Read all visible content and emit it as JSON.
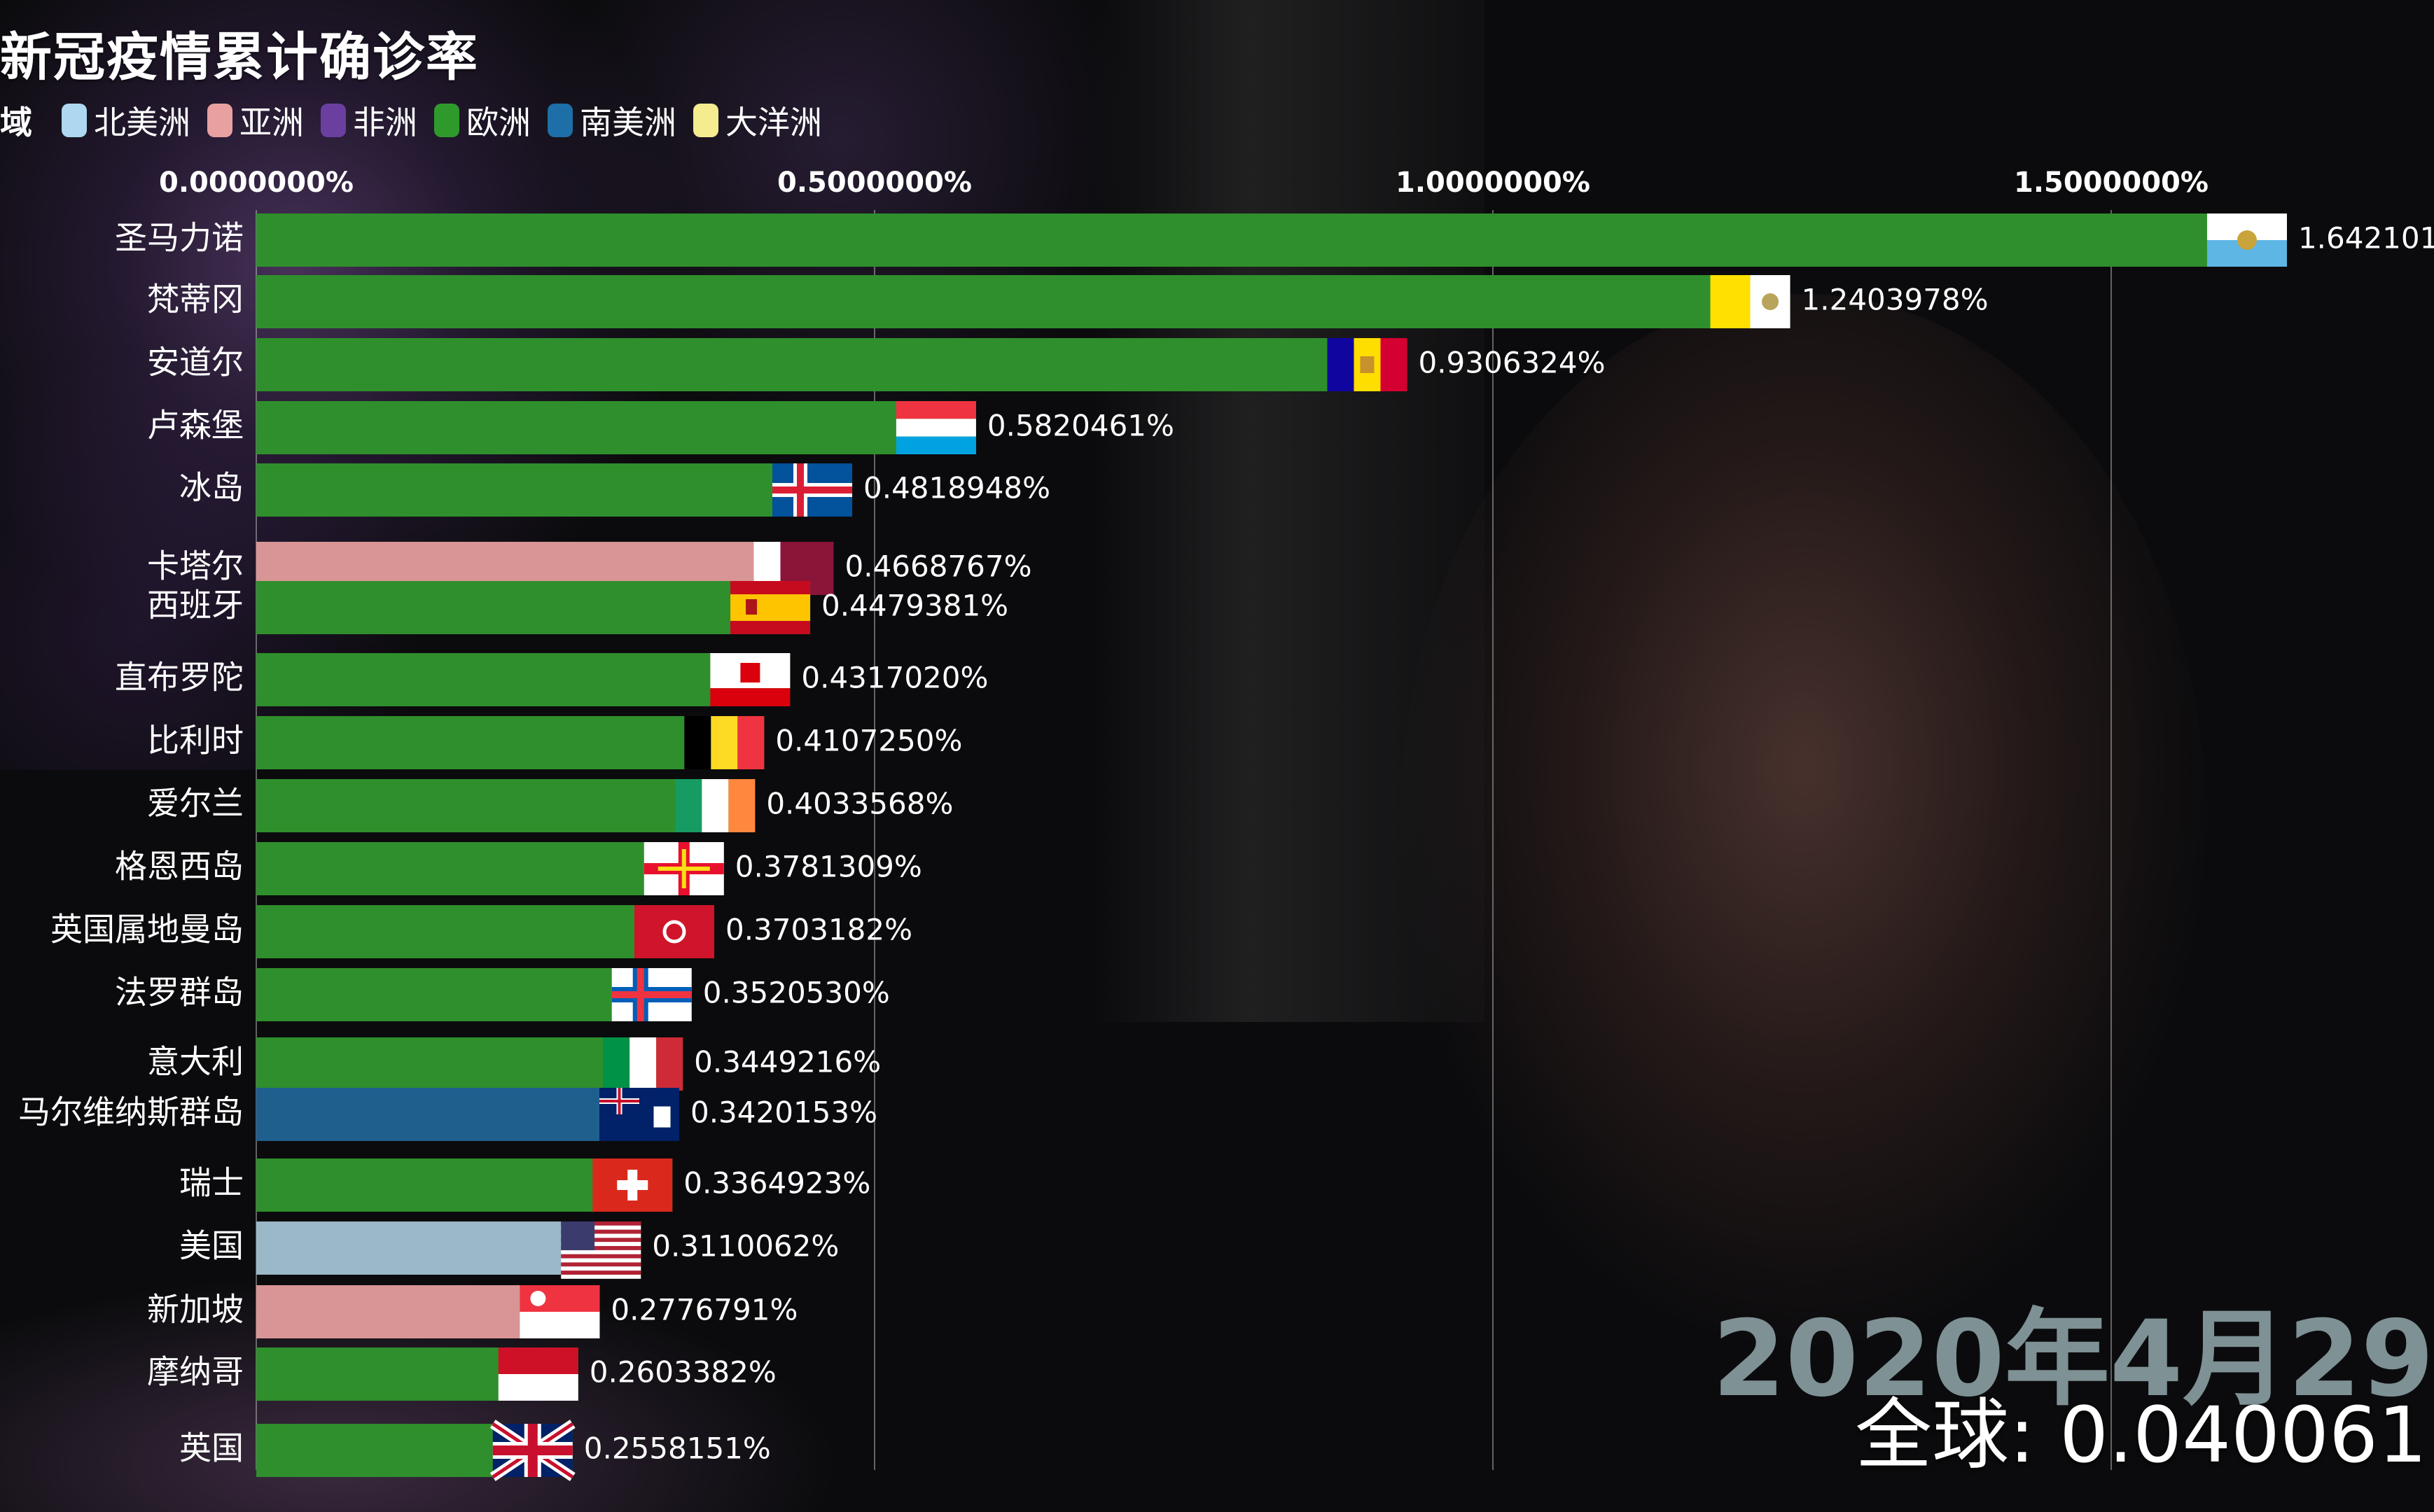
{
  "title": "新冠疫情累计确诊率",
  "legend": {
    "title": "域",
    "items": [
      {
        "label": "北美洲",
        "color": "#aed8ef"
      },
      {
        "label": "亚洲",
        "color": "#e9a0a0"
      },
      {
        "label": "非洲",
        "color": "#6a3fa0"
      },
      {
        "label": "欧洲",
        "color": "#2f9a2c"
      },
      {
        "label": "南美洲",
        "color": "#1e6fa8"
      },
      {
        "label": "大洋洲",
        "color": "#f5eb8f"
      }
    ]
  },
  "date_label": "2020年4月29",
  "total_label": "全球: 0.040061",
  "chart_data": {
    "type": "bar",
    "orientation": "horizontal",
    "x_ticks": [
      "0.0000000%",
      "0.5000000%",
      "1.0000000%",
      "1.5000000%"
    ],
    "x_tick_values": [
      0,
      0.5,
      1.0,
      1.5
    ],
    "xlim": [
      0,
      1.92
    ],
    "grid": true,
    "bars": [
      {
        "category": "圣马力诺",
        "value": 1.642101,
        "value_label": "1.642101",
        "region": "欧洲",
        "flag": "san-marino-flag"
      },
      {
        "category": "梵蒂冈",
        "value": 1.2403978,
        "value_label": "1.2403978%",
        "region": "欧洲",
        "flag": "vatican-flag"
      },
      {
        "category": "安道尔",
        "value": 0.9306324,
        "value_label": "0.9306324%",
        "region": "欧洲",
        "flag": "andorra-flag"
      },
      {
        "category": "卢森堡",
        "value": 0.5820461,
        "value_label": "0.5820461%",
        "region": "欧洲",
        "flag": "luxembourg-flag"
      },
      {
        "category": "冰岛",
        "value": 0.4818948,
        "value_label": "0.4818948%",
        "region": "欧洲",
        "flag": "iceland-flag"
      },
      {
        "category": "卡塔尔",
        "value": 0.4668767,
        "value_label": "0.4668767%",
        "region": "亚洲",
        "flag": "qatar-flag"
      },
      {
        "category": "西班牙",
        "value": 0.4479381,
        "value_label": "0.4479381%",
        "region": "欧洲",
        "flag": "spain-flag"
      },
      {
        "category": "直布罗陀",
        "value": 0.431702,
        "value_label": "0.4317020%",
        "region": "欧洲",
        "flag": "gibraltar-flag"
      },
      {
        "category": "比利时",
        "value": 0.410725,
        "value_label": "0.4107250%",
        "region": "欧洲",
        "flag": "belgium-flag"
      },
      {
        "category": "爱尔兰",
        "value": 0.4033568,
        "value_label": "0.4033568%",
        "region": "欧洲",
        "flag": "ireland-flag"
      },
      {
        "category": "格恩西岛",
        "value": 0.3781309,
        "value_label": "0.3781309%",
        "region": "欧洲",
        "flag": "guernsey-flag"
      },
      {
        "category": "英国属地曼岛",
        "value": 0.3703182,
        "value_label": "0.3703182%",
        "region": "欧洲",
        "flag": "isle-of-man-flag"
      },
      {
        "category": "法罗群岛",
        "value": 0.352053,
        "value_label": "0.3520530%",
        "region": "欧洲",
        "flag": "faroe-islands-flag"
      },
      {
        "category": "意大利",
        "value": 0.3449216,
        "value_label": "0.3449216%",
        "region": "欧洲",
        "flag": "italy-flag"
      },
      {
        "category": "马尔维纳斯群岛",
        "value": 0.3420153,
        "value_label": "0.3420153%",
        "region": "南美洲",
        "flag": "falkland-islands-flag"
      },
      {
        "category": "瑞士",
        "value": 0.3364923,
        "value_label": "0.3364923%",
        "region": "欧洲",
        "flag": "switzerland-flag"
      },
      {
        "category": "美国",
        "value": 0.3110062,
        "value_label": "0.3110062%",
        "region": "北美洲",
        "flag": "usa-flag"
      },
      {
        "category": "新加坡",
        "value": 0.2776791,
        "value_label": "0.2776791%",
        "region": "亚洲",
        "flag": "singapore-flag"
      },
      {
        "category": "摩纳哥",
        "value": 0.2603382,
        "value_label": "0.2603382%",
        "region": "欧洲",
        "flag": "monaco-flag"
      },
      {
        "category": "英国",
        "value": 0.2558151,
        "value_label": "0.2558151%",
        "region": "欧洲",
        "flag": "uk-flag"
      }
    ],
    "region_colors": {
      "欧洲": "#2f8f2c",
      "亚洲": "#d99595",
      "北美洲": "#9ab8c8",
      "南美洲": "#1f5f8e"
    }
  }
}
